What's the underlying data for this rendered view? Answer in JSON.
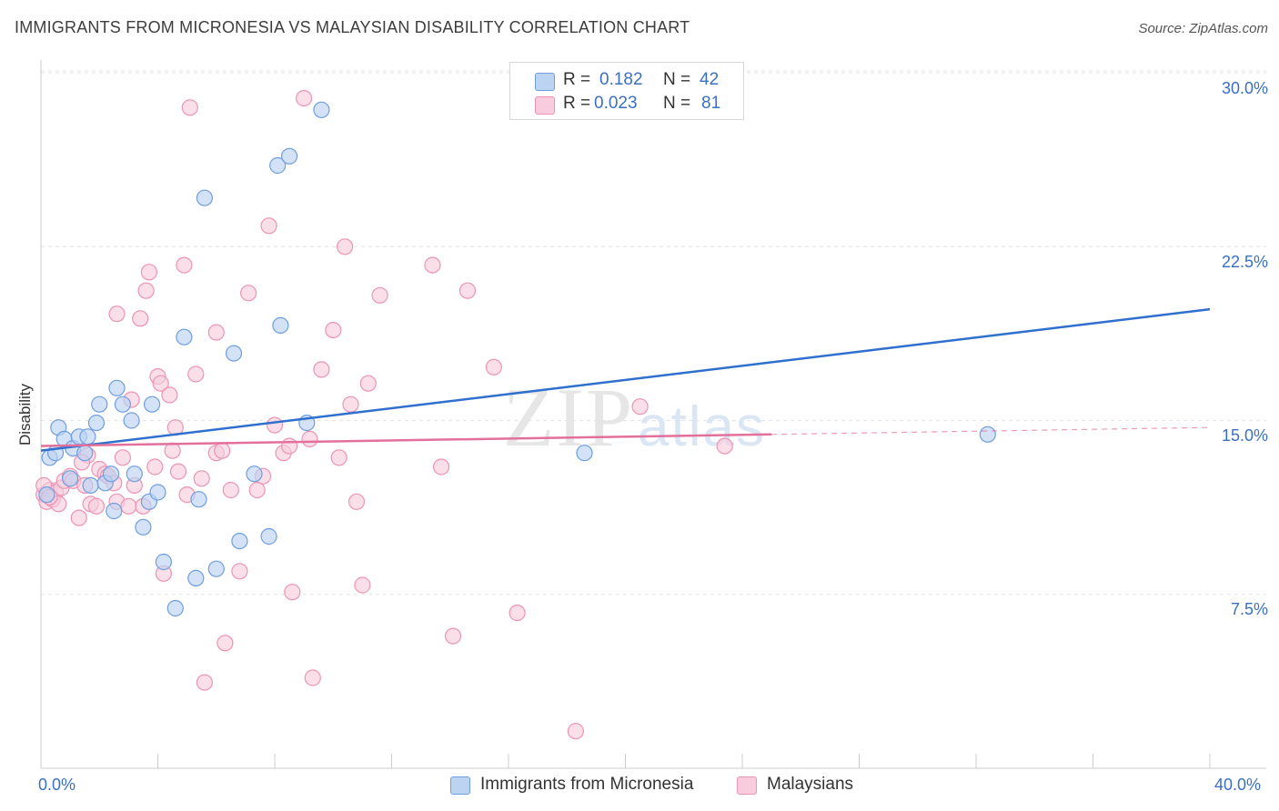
{
  "title": "IMMIGRANTS FROM MICRONESIA VS MALAYSIAN DISABILITY CORRELATION CHART",
  "source": "Source: ZipAtlas.com",
  "watermark": "ZIPatlas",
  "colors": {
    "blue": "#6f9ee0",
    "blue_fill": "#bcd3f2",
    "blue_line": "#2f6fce",
    "pink": "#ec94b4",
    "pink_fill": "#f8ccdc",
    "pink_line": "#e2709a",
    "axis_label": "#3a6fc4"
  },
  "stats": {
    "r_label": "R =",
    "n_label": "N =",
    "rows": [
      {
        "r": "0.182",
        "n": "42"
      },
      {
        "r": "0.023",
        "n": "81"
      }
    ]
  },
  "chart_data": {
    "type": "scatter",
    "title": "IMMIGRANTS FROM MICRONESIA VS MALAYSIAN DISABILITY CORRELATION CHART",
    "xlabel": "",
    "ylabel": "Disability",
    "xlim": [
      0,
      40
    ],
    "ylim": [
      0,
      31.5
    ],
    "x_tick_labels": [
      "0.0%",
      "40.0%"
    ],
    "y_ticks": [
      7.5,
      15.0,
      22.5,
      30.0
    ],
    "y_tick_labels": [
      "7.5%",
      "15.0%",
      "22.5%",
      "30.0%"
    ],
    "grid": true,
    "legend": [
      "Immigrants from Micronesia",
      "Malaysians"
    ],
    "series": [
      {
        "name": "Immigrants from Micronesia",
        "r": 0.182,
        "n": 42,
        "trend": {
          "x": [
            0,
            40
          ],
          "y": [
            13.7,
            19.8
          ],
          "dashed_after": null
        },
        "points": [
          [
            0.3,
            13.4
          ],
          [
            0.6,
            14.7
          ],
          [
            0.8,
            14.2
          ],
          [
            0.5,
            13.6
          ],
          [
            1.0,
            12.5
          ],
          [
            1.1,
            13.8
          ],
          [
            1.3,
            14.3
          ],
          [
            1.5,
            13.6
          ],
          [
            1.6,
            14.3
          ],
          [
            1.7,
            12.2
          ],
          [
            1.9,
            14.9
          ],
          [
            2.0,
            15.7
          ],
          [
            2.2,
            12.3
          ],
          [
            2.4,
            12.7
          ],
          [
            2.5,
            11.1
          ],
          [
            2.6,
            16.4
          ],
          [
            2.8,
            15.7
          ],
          [
            3.1,
            15.0
          ],
          [
            3.2,
            12.7
          ],
          [
            3.5,
            10.4
          ],
          [
            3.7,
            11.5
          ],
          [
            3.8,
            15.7
          ],
          [
            4.0,
            11.9
          ],
          [
            4.2,
            8.9
          ],
          [
            4.6,
            6.9
          ],
          [
            4.9,
            18.6
          ],
          [
            5.3,
            8.2
          ],
          [
            5.4,
            11.6
          ],
          [
            5.6,
            24.6
          ],
          [
            6.0,
            8.6
          ],
          [
            6.6,
            17.9
          ],
          [
            6.8,
            9.8
          ],
          [
            7.3,
            12.7
          ],
          [
            7.8,
            10.0
          ],
          [
            8.1,
            26.0
          ],
          [
            8.2,
            19.1
          ],
          [
            8.5,
            26.4
          ],
          [
            9.1,
            14.9
          ],
          [
            9.6,
            28.4
          ],
          [
            18.6,
            13.6
          ],
          [
            32.4,
            14.4
          ],
          [
            0.2,
            11.8
          ]
        ]
      },
      {
        "name": "Malaysians",
        "r": 0.023,
        "n": 81,
        "trend": {
          "x": [
            0,
            25
          ],
          "y": [
            13.9,
            14.4
          ],
          "dashed_after": 25,
          "dashed_to": 40,
          "dashed_end_y": 14.7
        },
        "points": [
          [
            0.1,
            11.8
          ],
          [
            0.2,
            11.5
          ],
          [
            0.3,
            12.0
          ],
          [
            0.4,
            11.6
          ],
          [
            0.5,
            11.9
          ],
          [
            0.6,
            11.4
          ],
          [
            0.7,
            12.1
          ],
          [
            0.8,
            12.4
          ],
          [
            1.0,
            12.6
          ],
          [
            1.1,
            12.4
          ],
          [
            1.3,
            10.8
          ],
          [
            1.5,
            12.2
          ],
          [
            1.6,
            13.5
          ],
          [
            1.7,
            11.4
          ],
          [
            1.9,
            11.3
          ],
          [
            2.0,
            12.9
          ],
          [
            2.2,
            12.7
          ],
          [
            2.3,
            12.6
          ],
          [
            2.5,
            12.3
          ],
          [
            2.6,
            11.5
          ],
          [
            2.6,
            19.6
          ],
          [
            2.8,
            13.4
          ],
          [
            3.0,
            11.3
          ],
          [
            3.1,
            15.9
          ],
          [
            3.2,
            12.2
          ],
          [
            3.4,
            19.4
          ],
          [
            3.5,
            11.3
          ],
          [
            3.6,
            20.6
          ],
          [
            3.7,
            21.4
          ],
          [
            3.9,
            13.0
          ],
          [
            4.0,
            16.9
          ],
          [
            4.1,
            16.6
          ],
          [
            4.2,
            8.4
          ],
          [
            4.4,
            16.1
          ],
          [
            4.5,
            13.7
          ],
          [
            4.6,
            14.7
          ],
          [
            4.7,
            12.8
          ],
          [
            4.9,
            21.7
          ],
          [
            5.0,
            11.8
          ],
          [
            5.1,
            28.5
          ],
          [
            5.3,
            17.0
          ],
          [
            5.5,
            12.5
          ],
          [
            5.6,
            3.7
          ],
          [
            6.0,
            13.6
          ],
          [
            6.0,
            18.8
          ],
          [
            6.2,
            13.7
          ],
          [
            6.3,
            5.4
          ],
          [
            6.5,
            12.0
          ],
          [
            6.8,
            8.5
          ],
          [
            7.1,
            20.5
          ],
          [
            7.4,
            12.0
          ],
          [
            7.6,
            12.6
          ],
          [
            7.8,
            23.4
          ],
          [
            8.0,
            14.8
          ],
          [
            8.3,
            13.6
          ],
          [
            8.5,
            13.9
          ],
          [
            8.6,
            7.6
          ],
          [
            9.0,
            28.9
          ],
          [
            9.2,
            14.2
          ],
          [
            9.3,
            3.9
          ],
          [
            9.6,
            17.2
          ],
          [
            10.0,
            18.9
          ],
          [
            10.2,
            13.4
          ],
          [
            10.4,
            22.5
          ],
          [
            10.6,
            15.7
          ],
          [
            10.8,
            11.5
          ],
          [
            11.0,
            7.9
          ],
          [
            11.2,
            16.6
          ],
          [
            11.6,
            20.4
          ],
          [
            13.4,
            21.7
          ],
          [
            13.7,
            13.0
          ],
          [
            14.1,
            5.7
          ],
          [
            14.6,
            20.6
          ],
          [
            15.5,
            17.3
          ],
          [
            16.3,
            6.7
          ],
          [
            18.3,
            1.6
          ],
          [
            20.5,
            15.6
          ],
          [
            23.4,
            13.9
          ],
          [
            0.1,
            12.2
          ],
          [
            0.3,
            11.7
          ],
          [
            1.4,
            13.2
          ]
        ]
      }
    ]
  },
  "axis": {
    "y_title": "Disability",
    "x_left": "0.0%",
    "x_right": "40.0%",
    "y_labels": [
      "30.0%",
      "22.5%",
      "15.0%",
      "7.5%"
    ]
  },
  "legend": {
    "items": [
      "Immigrants from Micronesia",
      "Malaysians"
    ]
  }
}
